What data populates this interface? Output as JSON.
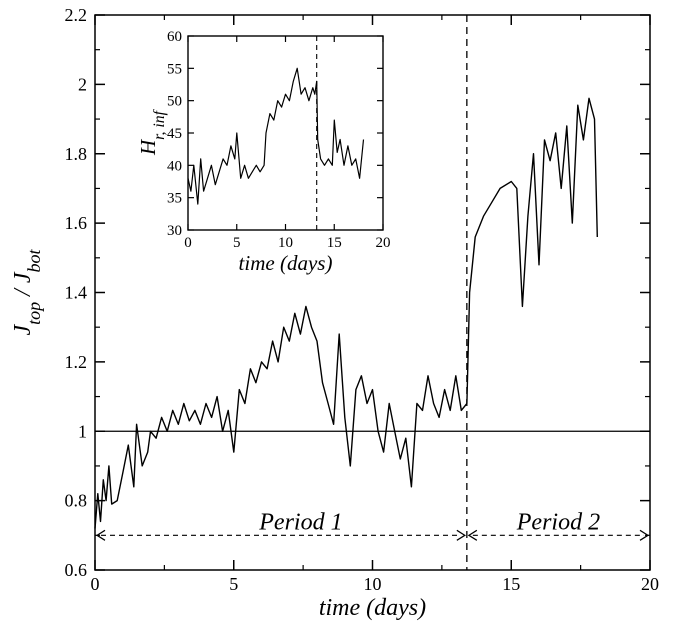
{
  "chart_data": [
    {
      "type": "line",
      "panel": "main",
      "xlabel": "time (days)",
      "ylabel": "J_top / J_bot",
      "xlim": [
        0,
        20
      ],
      "ylim": [
        0.6,
        2.2
      ],
      "xticks": [
        0,
        5,
        10,
        15,
        20
      ],
      "yticks": [
        0.6,
        0.8,
        1,
        1.2,
        1.4,
        1.6,
        1.8,
        2,
        2.2
      ],
      "xtick_labels": [
        "0",
        "5",
        "10",
        "15",
        "20"
      ],
      "ytick_labels": [
        "0.6",
        "0.8",
        "1",
        "1.2",
        "1.4",
        "1.6",
        "1.8",
        "2",
        "2.2"
      ],
      "grid": false,
      "reference_line": {
        "y": 1,
        "style": "solid"
      },
      "divider": {
        "x": 13.4,
        "style": "dashed"
      },
      "annotations": [
        {
          "text": "Period 1",
          "x_start": 0,
          "x_end": 13.4,
          "y": 0.7
        },
        {
          "text": "Period 2",
          "x_start": 13.4,
          "x_end": 20,
          "y": 0.7
        }
      ],
      "series": [
        {
          "x": [
            0,
            0.1,
            0.2,
            0.3,
            0.4,
            0.5,
            0.6,
            0.8,
            1.0,
            1.2,
            1.4,
            1.5,
            1.7,
            1.9,
            2.0,
            2.2,
            2.4,
            2.6,
            2.8,
            3.0,
            3.2,
            3.4,
            3.6,
            3.8,
            4.0,
            4.2,
            4.4,
            4.6,
            4.8,
            5.0,
            5.2,
            5.4,
            5.6,
            5.8,
            6.0,
            6.2,
            6.4,
            6.6,
            6.8,
            7.0,
            7.2,
            7.4,
            7.6,
            7.8,
            8.0,
            8.2,
            8.4,
            8.6,
            8.8,
            9.0,
            9.2,
            9.4,
            9.6,
            9.8,
            10.0,
            10.2,
            10.4,
            10.6,
            10.8,
            11.0,
            11.2,
            11.4,
            11.6,
            11.8,
            12.0,
            12.2,
            12.4,
            12.6,
            12.8,
            13.0,
            13.2,
            13.4,
            13.5,
            13.7,
            14.0,
            14.3,
            14.6,
            15.0,
            15.2,
            15.4,
            15.6,
            15.8,
            16.0,
            16.2,
            16.4,
            16.6,
            16.8,
            17.0,
            17.2,
            17.4,
            17.6,
            17.8,
            18.0,
            18.1
          ],
          "y": [
            0.72,
            0.82,
            0.74,
            0.86,
            0.8,
            0.9,
            0.79,
            0.8,
            0.88,
            0.96,
            0.84,
            1.02,
            0.9,
            0.94,
            1.0,
            0.98,
            1.04,
            1.0,
            1.06,
            1.02,
            1.08,
            1.03,
            1.06,
            1.02,
            1.08,
            1.04,
            1.1,
            1.0,
            1.06,
            0.94,
            1.12,
            1.08,
            1.18,
            1.14,
            1.2,
            1.18,
            1.26,
            1.2,
            1.3,
            1.26,
            1.34,
            1.28,
            1.36,
            1.3,
            1.26,
            1.14,
            1.08,
            1.02,
            1.28,
            1.04,
            0.9,
            1.12,
            1.16,
            1.08,
            1.12,
            1.0,
            0.94,
            1.08,
            1.0,
            0.92,
            0.98,
            0.84,
            1.08,
            1.06,
            1.16,
            1.08,
            1.04,
            1.12,
            1.06,
            1.16,
            1.06,
            1.08,
            1.4,
            1.56,
            1.62,
            1.66,
            1.7,
            1.72,
            1.7,
            1.36,
            1.62,
            1.8,
            1.48,
            1.84,
            1.78,
            1.86,
            1.7,
            1.88,
            1.6,
            1.94,
            1.84,
            1.96,
            1.9,
            1.56
          ]
        }
      ]
    },
    {
      "type": "line",
      "panel": "inset",
      "xlabel": "time (days)",
      "ylabel": "H_r, inf",
      "xlim": [
        0,
        20
      ],
      "ylim": [
        30,
        60
      ],
      "xticks": [
        0,
        5,
        10,
        15,
        20
      ],
      "yticks": [
        30,
        35,
        40,
        45,
        50,
        55,
        60
      ],
      "xtick_labels": [
        "0",
        "5",
        "10",
        "15",
        "20"
      ],
      "ytick_labels": [
        "30",
        "35",
        "40",
        "45",
        "50",
        "55",
        "60"
      ],
      "grid": false,
      "divider": {
        "x": 13.2,
        "style": "dashed"
      },
      "series": [
        {
          "x": [
            0,
            0.3,
            0.6,
            1.0,
            1.3,
            1.6,
            2.0,
            2.4,
            2.8,
            3.2,
            3.6,
            4.0,
            4.4,
            4.8,
            5.0,
            5.4,
            5.8,
            6.2,
            6.6,
            7.0,
            7.4,
            7.8,
            8.0,
            8.4,
            8.8,
            9.2,
            9.6,
            10.0,
            10.4,
            10.8,
            11.2,
            11.6,
            12.0,
            12.4,
            12.8,
            13.0,
            13.2,
            13.3,
            13.6,
            14.0,
            14.4,
            14.8,
            15.0,
            15.3,
            15.6,
            16.0,
            16.4,
            16.8,
            17.2,
            17.6,
            18.0
          ],
          "y": [
            38,
            36,
            40,
            34,
            41,
            36,
            38,
            40,
            37,
            39,
            41,
            40,
            43,
            41,
            45,
            38,
            40,
            38,
            39,
            40,
            39,
            40,
            45,
            48,
            47,
            50,
            49,
            51,
            50,
            53,
            55,
            51,
            52,
            50,
            52,
            51,
            53,
            44,
            41,
            40,
            41,
            40,
            47,
            42,
            44,
            40,
            43,
            40,
            41,
            38,
            44
          ]
        }
      ]
    }
  ]
}
